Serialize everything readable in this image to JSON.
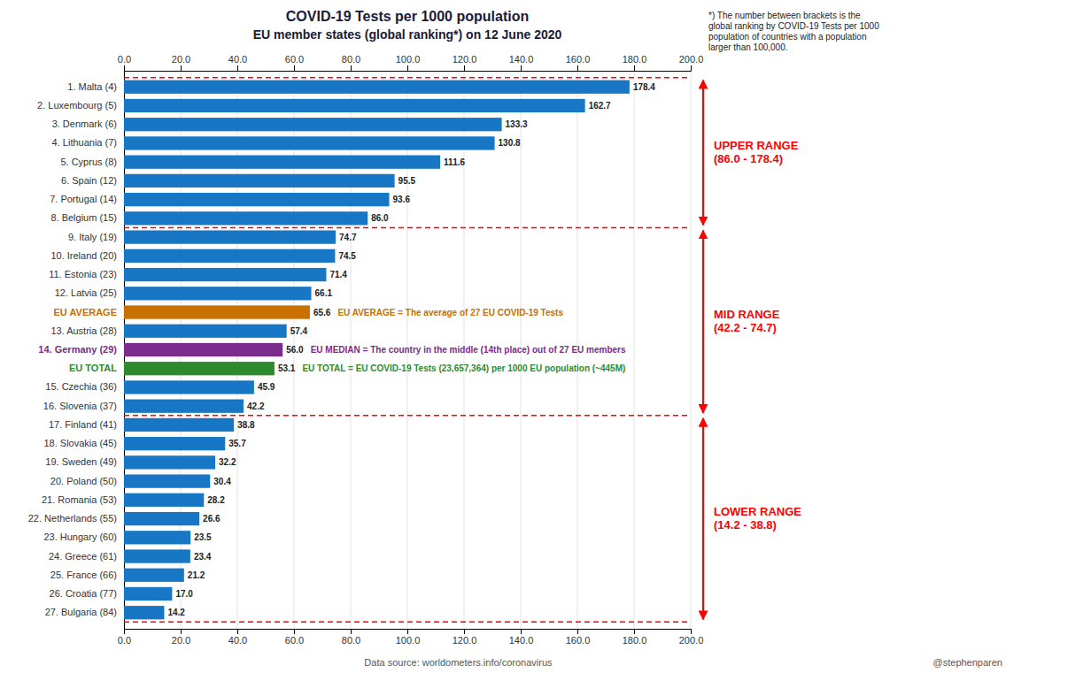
{
  "chart_data": {
    "type": "bar",
    "orientation": "horizontal",
    "title": "COVID-19 Tests per 1000 population",
    "subtitle": "EU member states (global ranking*) on 12 June 2020",
    "footnote": "*) The number between brackets is the\nglobal ranking by COVID-19 Tests per 1000\npopulation of countries with a population\nlarger than 100,000.",
    "source": "Data source: worldometers.info/coronavirus",
    "credit": "@stephenparen",
    "categories": [
      "1. Malta (4)",
      "2. Luxembourg (5)",
      "3. Denmark (6)",
      "4. Lithuania (7)",
      "5. Cyprus (8)",
      "6. Spain (12)",
      "7. Portugal (14)",
      "8. Belgium (15)",
      "9. Italy (19)",
      "10. Ireland (20)",
      "11. Estonia (23)",
      "12. Latvia (25)",
      "EU AVERAGE",
      "13. Austria (28)",
      "14. Germany (29)",
      "EU TOTAL",
      "15. Czechia (36)",
      "16. Slovenia (37)",
      "17. Finland (41)",
      "18. Slovakia (45)",
      "19. Sweden (49)",
      "20. Poland (50)",
      "21. Romania (53)",
      "22. Netherlands (55)",
      "23. Hungary (60)",
      "24. Greece (61)",
      "25. France (66)",
      "26. Croatia (77)",
      "27. Bulgaria (84)"
    ],
    "values": [
      178.4,
      162.7,
      133.3,
      130.8,
      111.6,
      95.5,
      93.6,
      86.0,
      74.7,
      74.5,
      71.4,
      66.1,
      65.6,
      57.4,
      56.0,
      53.1,
      45.9,
      42.2,
      38.8,
      35.7,
      32.2,
      30.4,
      28.2,
      26.6,
      23.5,
      23.4,
      21.2,
      17.0,
      14.2
    ],
    "value_labels": [
      "178.4",
      "162.7",
      "133.3",
      "130.8",
      "111.6",
      "95.5",
      "93.6",
      "86.0",
      "74.7",
      "74.5",
      "71.4",
      "66.1",
      "65.6",
      "57.4",
      "56.0",
      "53.1",
      "45.9",
      "42.2",
      "38.8",
      "35.7",
      "32.2",
      "30.4",
      "28.2",
      "26.6",
      "23.5",
      "23.4",
      "21.2",
      "17.0",
      "14.2"
    ],
    "data_labels": true,
    "colors": [
      "#1877c5",
      "#1877c5",
      "#1877c5",
      "#1877c5",
      "#1877c5",
      "#1877c5",
      "#1877c5",
      "#1877c5",
      "#1877c5",
      "#1877c5",
      "#1877c5",
      "#1877c5",
      "#c87000",
      "#1877c5",
      "#7b2d8b",
      "#2d8b2d",
      "#1877c5",
      "#1877c5",
      "#1877c5",
      "#1877c5",
      "#1877c5",
      "#1877c5",
      "#1877c5",
      "#1877c5",
      "#1877c5",
      "#1877c5",
      "#1877c5",
      "#1877c5",
      "#1877c5"
    ],
    "xlim": [
      0,
      200
    ],
    "xticks": [
      {
        "value": 0,
        "label": "0.0"
      },
      {
        "value": 20,
        "label": "20.0"
      },
      {
        "value": 40,
        "label": "40.0"
      },
      {
        "value": 60,
        "label": "60.0"
      },
      {
        "value": 80,
        "label": "80.0"
      },
      {
        "value": 100,
        "label": "100.0"
      },
      {
        "value": 120,
        "label": "120.0"
      },
      {
        "value": 140,
        "label": "140.0"
      },
      {
        "value": 160,
        "label": "160.0"
      },
      {
        "value": 180,
        "label": "180.0"
      },
      {
        "value": 200,
        "label": "200.0"
      }
    ],
    "grid": true,
    "annotations": [
      {
        "text": "EU AVERAGE = The average of 27 EU COVID-19 Tests",
        "category": "EU AVERAGE",
        "color": "#c87000"
      },
      {
        "text": "EU MEDIAN = The country in the middle (14th place) out of 27 EU members",
        "category": "14. Germany (29)",
        "color": "#7b2d8b"
      },
      {
        "text": "EU TOTAL = EU COVID-19 Tests (23,657,364) per 1000 EU population (~445M)",
        "category": "EU TOTAL",
        "color": "#2d8b2d"
      },
      {
        "text": "UPPER RANGE\n(86.0 - 178.4)",
        "from": "1. Malta (4)",
        "to": "8. Belgium (15)",
        "color": "red"
      },
      {
        "text": "MID RANGE\n(42.2 - 74.7)",
        "from": "9. Italy (19)",
        "to": "16. Slovenia (37)",
        "color": "red"
      },
      {
        "text": "LOWER RANGE\n(14.2 - 38.8)",
        "from": "17. Finland (41)",
        "to": "27. Bulgaria (84)",
        "color": "red"
      }
    ]
  }
}
